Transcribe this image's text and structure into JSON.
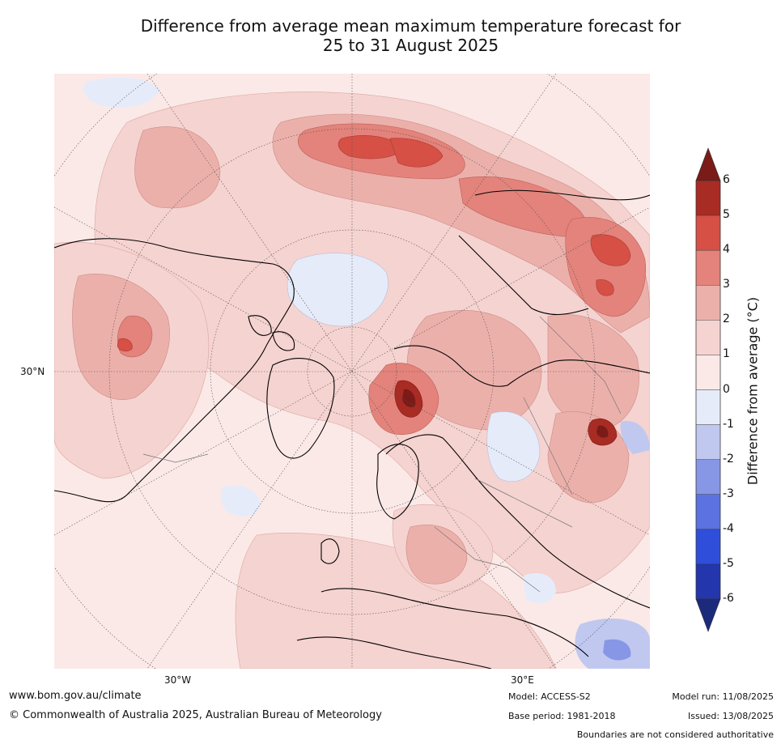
{
  "title_line1": "Difference from average mean maximum temperature forecast for",
  "title_line2": "25 to 31 August 2025",
  "map": {
    "projection": "north-polar-stereographic",
    "lat_label": "30°N",
    "lon_labels": [
      "30°W",
      "30°E"
    ],
    "lowest_color": "#fbe9e7",
    "anomaly_palette": {
      "0_to_1": "#fbe9e7",
      "1_to_2": "#f5d3d0",
      "2_to_3": "#ecb0ab",
      "3_to_4": "#e3837b",
      "4_to_5": "#d65046",
      "5_to_6": "#a82b24",
      "above_6": "#7a1b17",
      "-1_to_0": "#e6ebfa",
      "-2_to_-1": "#c0c8f0",
      "-3_to_-2": "#8896e6"
    }
  },
  "colorbar": {
    "axis_label": "Difference from average (°C)",
    "ticks": [
      "6",
      "5",
      "4",
      "3",
      "2",
      "1",
      "0",
      "-1",
      "-2",
      "-3",
      "-4",
      "-5",
      "-6"
    ],
    "colors": [
      "#7a1b17",
      "#a82b24",
      "#d65046",
      "#e3837b",
      "#ecb0ab",
      "#f5d3d0",
      "#fbe9e7",
      "#e6ebfa",
      "#c0c8f0",
      "#8896e6",
      "#5c72e0",
      "#2f4ed9",
      "#2436ac",
      "#1c2a7c"
    ]
  },
  "footer": {
    "website": "www.bom.gov.au/climate",
    "copyright": "© Commonwealth of Australia 2025, Australian Bureau of Meteorology",
    "model": "Model: ACCESS-S2",
    "base_period": "Base period: 1981-2018",
    "model_run": "Model run: 11/08/2025",
    "issued": "Issued: 13/08/2025",
    "disclaimer": "Boundaries are not considered authoritative"
  }
}
